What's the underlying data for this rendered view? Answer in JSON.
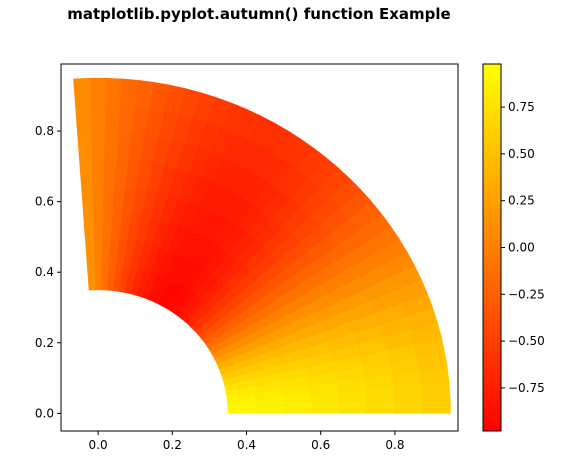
{
  "chart_data": {
    "type": "heatmap",
    "title": "matplotlib.pyplot.autumn() function Example",
    "xlabel": "",
    "ylabel": "",
    "xlim": [
      -0.1,
      0.97
    ],
    "ylim": [
      -0.05,
      0.99
    ],
    "xticks": [
      0.0,
      0.2,
      0.4,
      0.6,
      0.8
    ],
    "yticks": [
      0.0,
      0.2,
      0.4,
      0.6,
      0.8
    ],
    "xtick_labels": [
      "0.0",
      "0.2",
      "0.4",
      "0.6",
      "0.8"
    ],
    "ytick_labels": [
      "0.0",
      "0.2",
      "0.4",
      "0.6",
      "0.8"
    ],
    "colormap": "autumn",
    "colormap_start": "#ff0000",
    "colormap_end": "#ffff00",
    "colorbar": {
      "range": [
        -0.98,
        0.98
      ],
      "ticks": [
        0.75,
        0.5,
        0.25,
        0.0,
        -0.25,
        -0.5,
        -0.75
      ],
      "tick_labels": [
        "0.75",
        "0.50",
        "0.25",
        "0.00",
        "−0.25",
        "−0.50",
        "−0.75"
      ]
    },
    "mesh": {
      "inner_radius": 0.35,
      "outer_radius": 0.95,
      "angle_start_deg": 0,
      "angle_end_deg": 94,
      "radial_steps": 8,
      "angular_steps": 36
    },
    "field": "cos(3*angle) * cos(r)",
    "grid": false
  }
}
